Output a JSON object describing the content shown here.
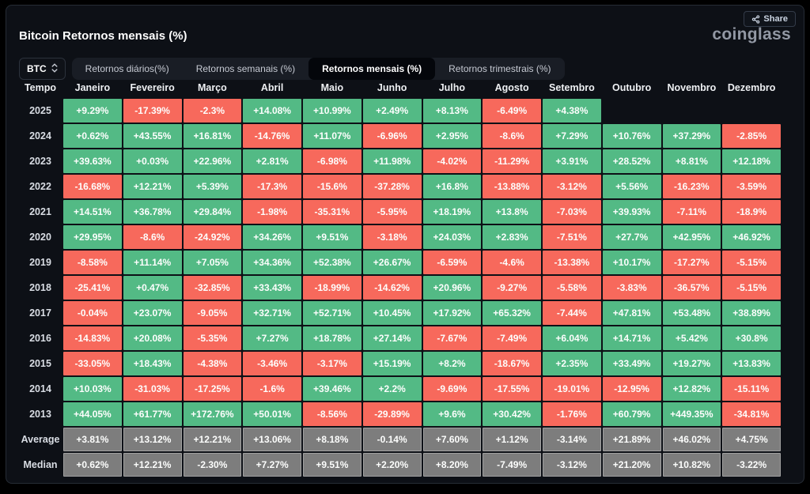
{
  "header": {
    "title": "Bitcoin Retornos mensais (%)",
    "logo": "coinglass",
    "share_label": "Share",
    "share_icon": "share-nodes-icon"
  },
  "controls": {
    "coin_select": {
      "value": "BTC",
      "icon": "up-down-chevrons-icon"
    },
    "tabs": [
      {
        "label": "Retornos diários(%)",
        "active": false
      },
      {
        "label": "Retornos semanais (%)",
        "active": false
      },
      {
        "label": "Retornos mensais (%)",
        "active": true
      },
      {
        "label": "Retornos trimestrais (%)",
        "active": false
      }
    ]
  },
  "colors": {
    "positive": "#53ba85",
    "negative": "#f7695c",
    "summary": "#7d7d7d"
  },
  "table": {
    "columns": [
      "Tempo",
      "Janeiro",
      "Fevereiro",
      "Março",
      "Abril",
      "Maio",
      "Junho",
      "Julho",
      "Agosto",
      "Setembro",
      "Outubro",
      "Novembro",
      "Dezembro"
    ],
    "rows": [
      {
        "label": "2025",
        "type": "year",
        "values": [
          "+9.29%",
          "-17.39%",
          "-2.3%",
          "+14.08%",
          "+10.99%",
          "+2.49%",
          "+8.13%",
          "-6.49%",
          "+4.38%",
          "",
          "",
          ""
        ]
      },
      {
        "label": "2024",
        "type": "year",
        "values": [
          "+0.62%",
          "+43.55%",
          "+16.81%",
          "-14.76%",
          "+11.07%",
          "-6.96%",
          "+2.95%",
          "-8.6%",
          "+7.29%",
          "+10.76%",
          "+37.29%",
          "-2.85%"
        ]
      },
      {
        "label": "2023",
        "type": "year",
        "values": [
          "+39.63%",
          "+0.03%",
          "+22.96%",
          "+2.81%",
          "-6.98%",
          "+11.98%",
          "-4.02%",
          "-11.29%",
          "+3.91%",
          "+28.52%",
          "+8.81%",
          "+12.18%"
        ]
      },
      {
        "label": "2022",
        "type": "year",
        "values": [
          "-16.68%",
          "+12.21%",
          "+5.39%",
          "-17.3%",
          "-15.6%",
          "-37.28%",
          "+16.8%",
          "-13.88%",
          "-3.12%",
          "+5.56%",
          "-16.23%",
          "-3.59%"
        ]
      },
      {
        "label": "2021",
        "type": "year",
        "values": [
          "+14.51%",
          "+36.78%",
          "+29.84%",
          "-1.98%",
          "-35.31%",
          "-5.95%",
          "+18.19%",
          "+13.8%",
          "-7.03%",
          "+39.93%",
          "-7.11%",
          "-18.9%"
        ]
      },
      {
        "label": "2020",
        "type": "year",
        "values": [
          "+29.95%",
          "-8.6%",
          "-24.92%",
          "+34.26%",
          "+9.51%",
          "-3.18%",
          "+24.03%",
          "+2.83%",
          "-7.51%",
          "+27.7%",
          "+42.95%",
          "+46.92%"
        ]
      },
      {
        "label": "2019",
        "type": "year",
        "values": [
          "-8.58%",
          "+11.14%",
          "+7.05%",
          "+34.36%",
          "+52.38%",
          "+26.67%",
          "-6.59%",
          "-4.6%",
          "-13.38%",
          "+10.17%",
          "-17.27%",
          "-5.15%"
        ]
      },
      {
        "label": "2018",
        "type": "year",
        "values": [
          "-25.41%",
          "+0.47%",
          "-32.85%",
          "+33.43%",
          "-18.99%",
          "-14.62%",
          "+20.96%",
          "-9.27%",
          "-5.58%",
          "-3.83%",
          "-36.57%",
          "-5.15%"
        ]
      },
      {
        "label": "2017",
        "type": "year",
        "values": [
          "-0.04%",
          "+23.07%",
          "-9.05%",
          "+32.71%",
          "+52.71%",
          "+10.45%",
          "+17.92%",
          "+65.32%",
          "-7.44%",
          "+47.81%",
          "+53.48%",
          "+38.89%"
        ]
      },
      {
        "label": "2016",
        "type": "year",
        "values": [
          "-14.83%",
          "+20.08%",
          "-5.35%",
          "+7.27%",
          "+18.78%",
          "+27.14%",
          "-7.67%",
          "-7.49%",
          "+6.04%",
          "+14.71%",
          "+5.42%",
          "+30.8%"
        ]
      },
      {
        "label": "2015",
        "type": "year",
        "values": [
          "-33.05%",
          "+18.43%",
          "-4.38%",
          "-3.46%",
          "-3.17%",
          "+15.19%",
          "+8.2%",
          "-18.67%",
          "+2.35%",
          "+33.49%",
          "+19.27%",
          "+13.83%"
        ]
      },
      {
        "label": "2014",
        "type": "year",
        "values": [
          "+10.03%",
          "-31.03%",
          "-17.25%",
          "-1.6%",
          "+39.46%",
          "+2.2%",
          "-9.69%",
          "-17.55%",
          "-19.01%",
          "-12.95%",
          "+12.82%",
          "-15.11%"
        ]
      },
      {
        "label": "2013",
        "type": "year",
        "values": [
          "+44.05%",
          "+61.77%",
          "+172.76%",
          "+50.01%",
          "-8.56%",
          "-29.89%",
          "+9.6%",
          "+30.42%",
          "-1.76%",
          "+60.79%",
          "+449.35%",
          "-34.81%"
        ]
      },
      {
        "label": "Average",
        "type": "summary",
        "values": [
          "+3.81%",
          "+13.12%",
          "+12.21%",
          "+13.06%",
          "+8.18%",
          "-0.14%",
          "+7.60%",
          "+1.12%",
          "-3.14%",
          "+21.89%",
          "+46.02%",
          "+4.75%"
        ]
      },
      {
        "label": "Median",
        "type": "summary",
        "values": [
          "+0.62%",
          "+12.21%",
          "-2.30%",
          "+7.27%",
          "+9.51%",
          "+2.20%",
          "+8.20%",
          "-7.49%",
          "-3.12%",
          "+21.20%",
          "+10.82%",
          "-3.22%"
        ]
      }
    ]
  }
}
